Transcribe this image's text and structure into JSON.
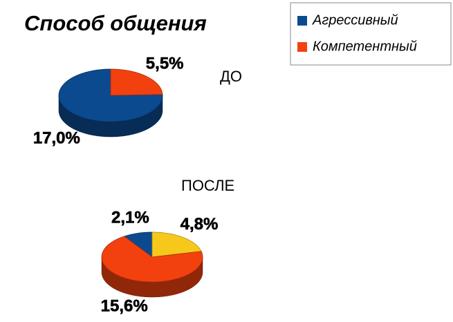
{
  "chart_data": [
    {
      "type": "pie",
      "title": "Способ общения",
      "subtitle": "ДО",
      "categories": [
        "Агрессивный",
        "Компетентный"
      ],
      "values": [
        17.0,
        5.5
      ],
      "value_labels": [
        "17,0%",
        "5,5%"
      ],
      "colors": [
        "#0b4a8e",
        "#f2410f"
      ],
      "legend": "top-right"
    },
    {
      "type": "pie",
      "subtitle": "ПОСЛЕ",
      "categories": [
        "Агрессивный",
        null,
        "Компетентный"
      ],
      "values": [
        2.1,
        4.8,
        15.6
      ],
      "value_labels": [
        "2,1%",
        "4,8%",
        "15,6%"
      ],
      "colors": [
        "#0b4a8e",
        "#f7c81c",
        "#f2410f"
      ]
    }
  ]
}
